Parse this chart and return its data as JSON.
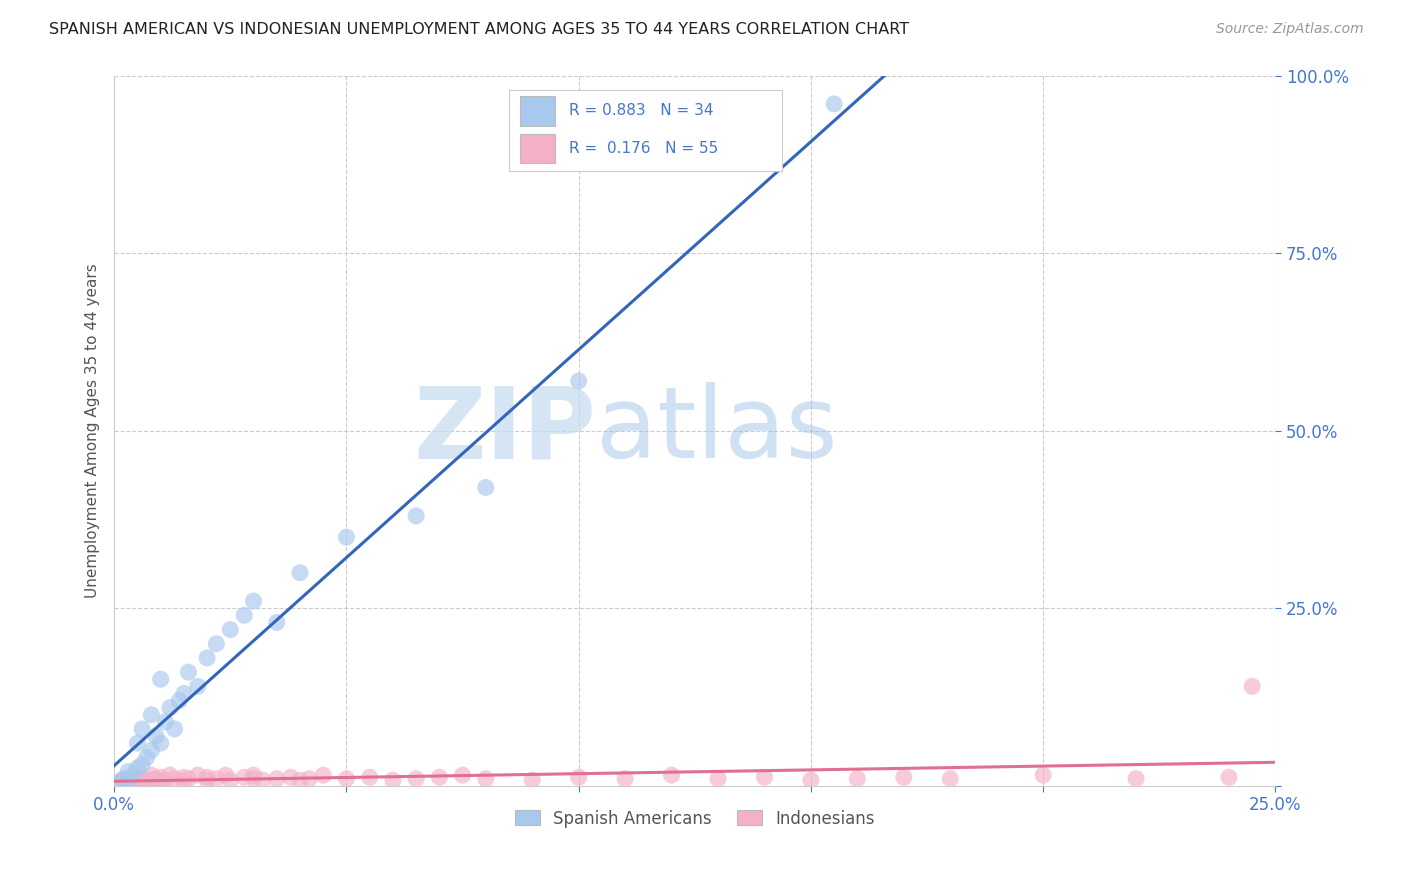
{
  "title": "SPANISH AMERICAN VS INDONESIAN UNEMPLOYMENT AMONG AGES 35 TO 44 YEARS CORRELATION CHART",
  "source": "Source: ZipAtlas.com",
  "legend_blue_label": "Spanish Americans",
  "legend_pink_label": "Indonesians",
  "R_blue": 0.883,
  "N_blue": 34,
  "R_pink": 0.176,
  "N_pink": 55,
  "blue_color": "#a8c8ee",
  "pink_color": "#f4b0c8",
  "blue_line_color": "#3366bb",
  "pink_line_color": "#e07090",
  "watermark_zip": "ZIP",
  "watermark_atlas": "atlas",
  "background_color": "#ffffff",
  "grid_color": "#cccccc",
  "xlim": [
    0.0,
    0.25
  ],
  "ylim": [
    0.0,
    1.0
  ],
  "blue_scatter_x": [
    0.001,
    0.002,
    0.003,
    0.003,
    0.004,
    0.005,
    0.005,
    0.006,
    0.006,
    0.007,
    0.008,
    0.008,
    0.009,
    0.01,
    0.01,
    0.011,
    0.012,
    0.013,
    0.014,
    0.015,
    0.016,
    0.018,
    0.02,
    0.022,
    0.025,
    0.028,
    0.03,
    0.035,
    0.04,
    0.05,
    0.065,
    0.08,
    0.1,
    0.155
  ],
  "blue_scatter_y": [
    0.005,
    0.01,
    0.008,
    0.02,
    0.015,
    0.025,
    0.06,
    0.03,
    0.08,
    0.04,
    0.05,
    0.1,
    0.07,
    0.06,
    0.15,
    0.09,
    0.11,
    0.08,
    0.12,
    0.13,
    0.16,
    0.14,
    0.18,
    0.2,
    0.22,
    0.24,
    0.26,
    0.23,
    0.3,
    0.35,
    0.38,
    0.42,
    0.57,
    0.96
  ],
  "pink_scatter_x": [
    0.001,
    0.002,
    0.003,
    0.004,
    0.005,
    0.005,
    0.006,
    0.007,
    0.008,
    0.008,
    0.009,
    0.01,
    0.01,
    0.011,
    0.012,
    0.013,
    0.015,
    0.015,
    0.016,
    0.018,
    0.02,
    0.02,
    0.022,
    0.024,
    0.025,
    0.028,
    0.03,
    0.03,
    0.032,
    0.035,
    0.038,
    0.04,
    0.042,
    0.045,
    0.05,
    0.055,
    0.06,
    0.065,
    0.07,
    0.075,
    0.08,
    0.09,
    0.1,
    0.11,
    0.12,
    0.13,
    0.14,
    0.15,
    0.16,
    0.17,
    0.18,
    0.2,
    0.22,
    0.24,
    0.245
  ],
  "pink_scatter_y": [
    0.005,
    0.008,
    0.01,
    0.005,
    0.012,
    0.008,
    0.01,
    0.006,
    0.015,
    0.008,
    0.01,
    0.012,
    0.005,
    0.008,
    0.015,
    0.01,
    0.012,
    0.006,
    0.01,
    0.015,
    0.008,
    0.012,
    0.01,
    0.015,
    0.008,
    0.012,
    0.01,
    0.015,
    0.008,
    0.01,
    0.012,
    0.008,
    0.01,
    0.015,
    0.01,
    0.012,
    0.008,
    0.01,
    0.012,
    0.015,
    0.01,
    0.008,
    0.012,
    0.01,
    0.015,
    0.01,
    0.012,
    0.008,
    0.01,
    0.012,
    0.01,
    0.015,
    0.01,
    0.012,
    0.14
  ]
}
